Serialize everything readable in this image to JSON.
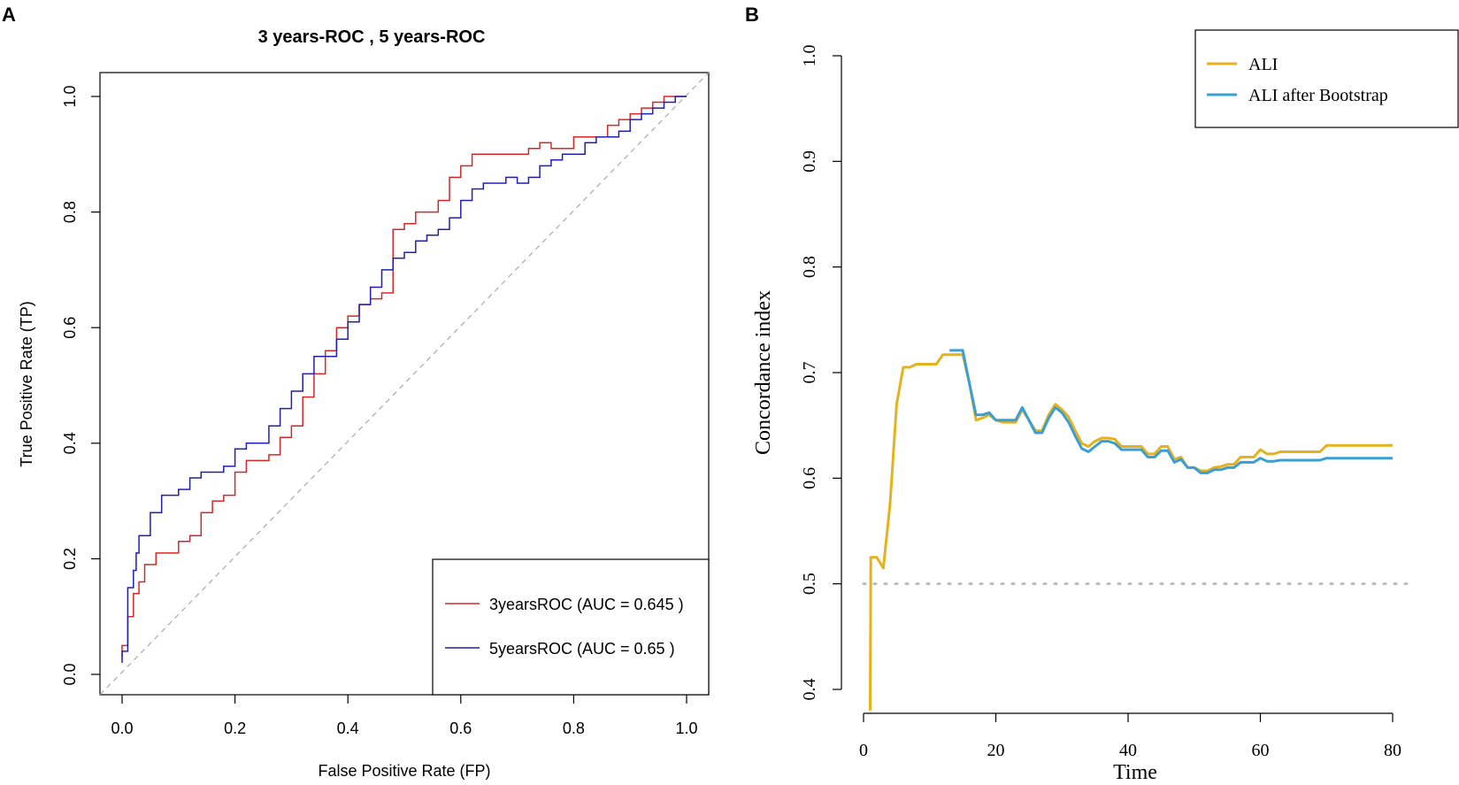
{
  "colors": {
    "roc3": "#d62728",
    "roc5": "#1f1fb4",
    "ali": "#e3b21c",
    "ali_boot": "#3a9fd4",
    "ref": "#bbbbbb"
  },
  "chart_data": [
    {
      "panel": "A",
      "type": "line",
      "title": "3 years-ROC ,  5 years-ROC",
      "xlabel": "False Positive Rate (FP)",
      "ylabel": "True Positive Rate (TP)",
      "xlim": [
        0,
        1
      ],
      "ylim": [
        0,
        1
      ],
      "xticks": [
        "0.0",
        "0.2",
        "0.4",
        "0.6",
        "0.8",
        "1.0"
      ],
      "yticks": [
        "0.0",
        "0.2",
        "0.4",
        "0.6",
        "0.8",
        "1.0"
      ],
      "legend_position": "bottom-right",
      "series": [
        {
          "name": "3yearsROC (AUC = 0.645 )",
          "color_key": "roc3",
          "x": [
            0,
            0.01,
            0.02,
            0.03,
            0.04,
            0.06,
            0.08,
            0.1,
            0.12,
            0.14,
            0.16,
            0.18,
            0.2,
            0.22,
            0.24,
            0.26,
            0.28,
            0.3,
            0.32,
            0.34,
            0.36,
            0.38,
            0.4,
            0.42,
            0.44,
            0.46,
            0.48,
            0.5,
            0.52,
            0.54,
            0.56,
            0.58,
            0.6,
            0.62,
            0.64,
            0.66,
            0.68,
            0.7,
            0.72,
            0.74,
            0.76,
            0.78,
            0.8,
            0.82,
            0.84,
            0.86,
            0.88,
            0.9,
            0.92,
            0.94,
            0.96,
            0.98,
            1.0
          ],
          "y": [
            0.03,
            0.05,
            0.1,
            0.14,
            0.16,
            0.19,
            0.21,
            0.21,
            0.23,
            0.24,
            0.28,
            0.3,
            0.31,
            0.35,
            0.37,
            0.37,
            0.38,
            0.41,
            0.43,
            0.48,
            0.52,
            0.56,
            0.6,
            0.62,
            0.64,
            0.65,
            0.66,
            0.77,
            0.78,
            0.8,
            0.8,
            0.82,
            0.86,
            0.88,
            0.9,
            0.9,
            0.9,
            0.9,
            0.9,
            0.91,
            0.92,
            0.91,
            0.91,
            0.93,
            0.93,
            0.93,
            0.95,
            0.96,
            0.97,
            0.98,
            0.99,
            1.0,
            1.0
          ]
        },
        {
          "name": "5yearsROC (AUC = 0.65 )",
          "color_key": "roc5",
          "x": [
            0,
            0.01,
            0.02,
            0.025,
            0.03,
            0.05,
            0.07,
            0.1,
            0.12,
            0.14,
            0.16,
            0.18,
            0.2,
            0.22,
            0.24,
            0.26,
            0.28,
            0.3,
            0.32,
            0.34,
            0.36,
            0.38,
            0.4,
            0.42,
            0.44,
            0.46,
            0.48,
            0.5,
            0.52,
            0.54,
            0.56,
            0.58,
            0.6,
            0.62,
            0.64,
            0.66,
            0.68,
            0.7,
            0.72,
            0.74,
            0.76,
            0.78,
            0.8,
            0.82,
            0.84,
            0.86,
            0.88,
            0.9,
            0.92,
            0.94,
            0.96,
            0.98,
            1.0
          ],
          "y": [
            0.02,
            0.04,
            0.15,
            0.18,
            0.21,
            0.24,
            0.28,
            0.31,
            0.32,
            0.34,
            0.35,
            0.35,
            0.36,
            0.39,
            0.4,
            0.4,
            0.43,
            0.46,
            0.49,
            0.52,
            0.55,
            0.55,
            0.58,
            0.61,
            0.64,
            0.67,
            0.7,
            0.72,
            0.73,
            0.75,
            0.76,
            0.77,
            0.79,
            0.82,
            0.84,
            0.85,
            0.85,
            0.86,
            0.85,
            0.86,
            0.88,
            0.89,
            0.9,
            0.9,
            0.92,
            0.93,
            0.93,
            0.94,
            0.96,
            0.97,
            0.98,
            0.99,
            1.0
          ]
        }
      ]
    },
    {
      "panel": "B",
      "type": "line",
      "xlabel": "Time",
      "ylabel": "Concordance index",
      "xlim": [
        0,
        80
      ],
      "ylim": [
        0.4,
        1.0
      ],
      "xticks": [
        "0",
        "20",
        "40",
        "60",
        "80"
      ],
      "yticks": [
        "0.4",
        "0.5",
        "0.6",
        "0.7",
        "0.8",
        "0.9",
        "1.0"
      ],
      "reference_line": 0.5,
      "legend_position": "top-right",
      "series": [
        {
          "name": "ALI",
          "color_key": "ali",
          "x": [
            1,
            1.1,
            2,
            3,
            4,
            5,
            6,
            7,
            8,
            9,
            10,
            11,
            12,
            13,
            14,
            15,
            16,
            17,
            18,
            19,
            20,
            21,
            22,
            23,
            24,
            25,
            26,
            27,
            28,
            29,
            30,
            31,
            32,
            33,
            34,
            35,
            36,
            37,
            38,
            39,
            40,
            41,
            42,
            43,
            44,
            45,
            46,
            47,
            48,
            49,
            50,
            51,
            52,
            53,
            54,
            55,
            56,
            57,
            58,
            59,
            60,
            61,
            62,
            63,
            64,
            65,
            66,
            67,
            68,
            69,
            70,
            72,
            74,
            76,
            78,
            80
          ],
          "y": [
            0.38,
            0.525,
            0.525,
            0.515,
            0.575,
            0.67,
            0.705,
            0.705,
            0.708,
            0.708,
            0.708,
            0.708,
            0.717,
            0.717,
            0.717,
            0.717,
            0.69,
            0.655,
            0.657,
            0.66,
            0.655,
            0.653,
            0.653,
            0.653,
            0.665,
            0.655,
            0.645,
            0.645,
            0.66,
            0.67,
            0.665,
            0.658,
            0.645,
            0.633,
            0.63,
            0.635,
            0.638,
            0.638,
            0.637,
            0.63,
            0.63,
            0.63,
            0.63,
            0.623,
            0.623,
            0.63,
            0.63,
            0.618,
            0.62,
            0.61,
            0.61,
            0.607,
            0.607,
            0.61,
            0.611,
            0.613,
            0.613,
            0.62,
            0.62,
            0.62,
            0.627,
            0.623,
            0.623,
            0.625,
            0.625,
            0.625,
            0.625,
            0.625,
            0.625,
            0.625,
            0.631,
            0.631,
            0.631,
            0.631,
            0.631,
            0.631
          ]
        },
        {
          "name": "ALI after Bootstrap",
          "color_key": "ali_boot",
          "x": [
            13,
            14,
            15,
            16,
            17,
            18,
            19,
            20,
            21,
            22,
            23,
            24,
            25,
            26,
            27,
            28,
            29,
            30,
            31,
            32,
            33,
            34,
            35,
            36,
            37,
            38,
            39,
            40,
            41,
            42,
            43,
            44,
            45,
            46,
            47,
            48,
            49,
            50,
            51,
            52,
            53,
            54,
            55,
            56,
            57,
            58,
            59,
            60,
            61,
            62,
            63,
            64,
            65,
            66,
            67,
            68,
            69,
            70,
            72,
            74,
            76,
            78,
            80
          ],
          "y": [
            0.721,
            0.721,
            0.721,
            0.69,
            0.66,
            0.66,
            0.662,
            0.655,
            0.655,
            0.655,
            0.655,
            0.667,
            0.655,
            0.643,
            0.643,
            0.657,
            0.667,
            0.662,
            0.653,
            0.64,
            0.628,
            0.625,
            0.63,
            0.635,
            0.635,
            0.633,
            0.627,
            0.627,
            0.627,
            0.627,
            0.62,
            0.62,
            0.626,
            0.626,
            0.615,
            0.618,
            0.61,
            0.61,
            0.605,
            0.605,
            0.608,
            0.608,
            0.61,
            0.61,
            0.615,
            0.615,
            0.615,
            0.619,
            0.616,
            0.616,
            0.617,
            0.617,
            0.617,
            0.617,
            0.617,
            0.617,
            0.617,
            0.619,
            0.619,
            0.619,
            0.619,
            0.619,
            0.619
          ]
        }
      ]
    }
  ]
}
